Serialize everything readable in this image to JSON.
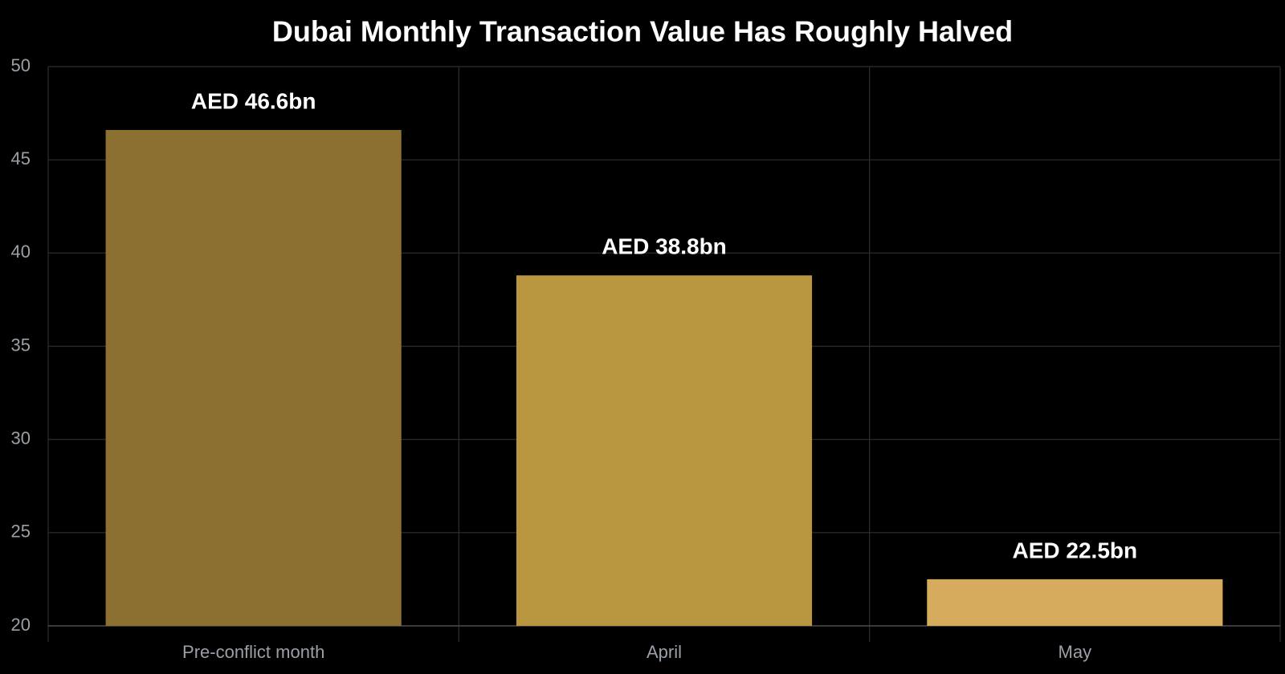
{
  "chart_data": {
    "type": "bar",
    "title": "Dubai Monthly Transaction Value Has Roughly Halved",
    "xlabel": "",
    "ylabel": "",
    "categories": [
      "Pre-conflict month",
      "April",
      "May"
    ],
    "values": [
      46.6,
      38.8,
      22.5
    ],
    "data_labels": [
      "AED 46.6bn",
      "AED 38.8bn",
      "AED 22.5bn"
    ],
    "bar_colors": [
      "#8c7031",
      "#b8953f",
      "#d6ab5e"
    ],
    "ylim": [
      20,
      50
    ],
    "yticks": [
      20,
      25,
      30,
      35,
      40,
      45,
      50
    ],
    "grid": true,
    "legend": "none"
  },
  "theme": {
    "background": "#000000",
    "title_color": "#ffffff",
    "tick_color": "#9aa0a6",
    "grid_color": "#2f2f2f",
    "label_color": "#ffffff"
  }
}
